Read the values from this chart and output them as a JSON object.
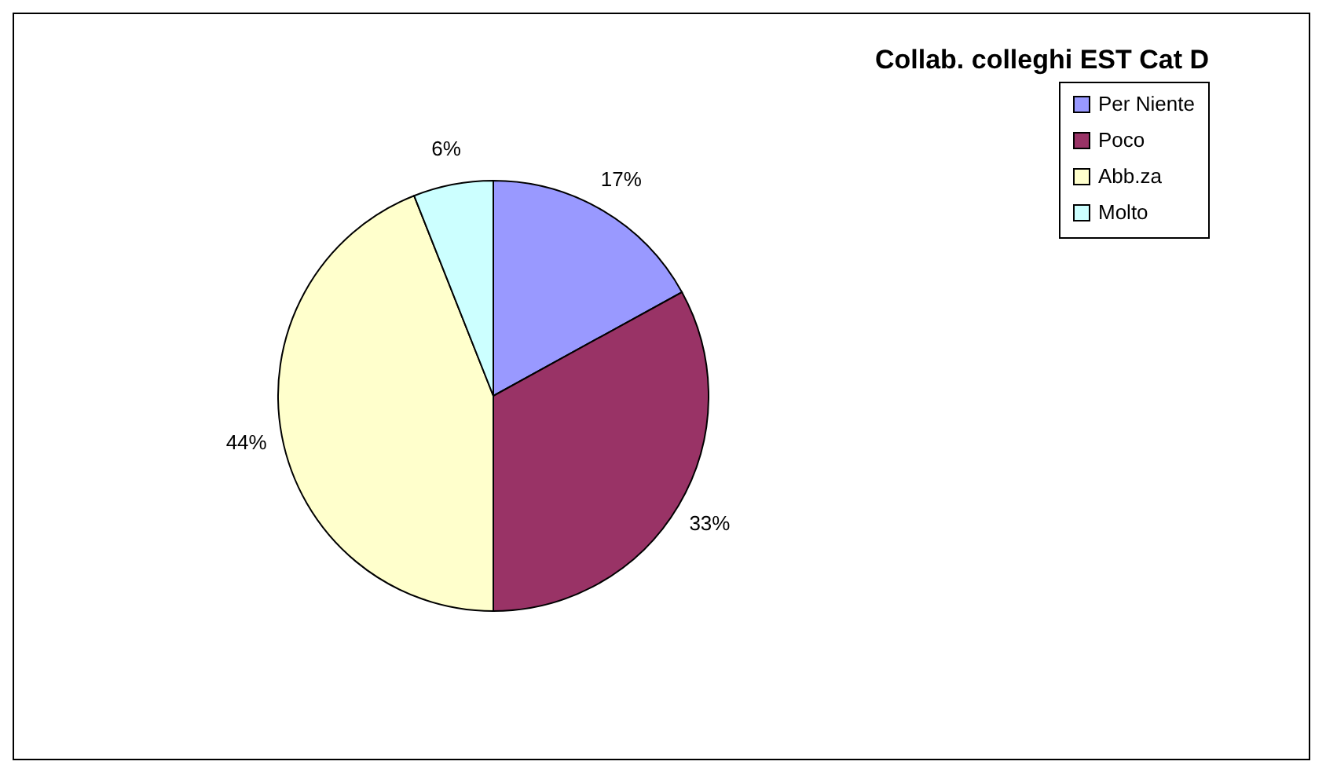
{
  "chart_data": {
    "type": "pie",
    "title": "Collab. colleghi EST Cat D",
    "categories": [
      "Per Niente",
      "Poco",
      "Abb.za",
      "Molto"
    ],
    "values": [
      17,
      33,
      44,
      6
    ],
    "colors": [
      "#9999ff",
      "#993366",
      "#ffffcc",
      "#ccffff"
    ],
    "value_labels": [
      "17%",
      "33%",
      "44%",
      "6%"
    ],
    "legend": "right"
  }
}
